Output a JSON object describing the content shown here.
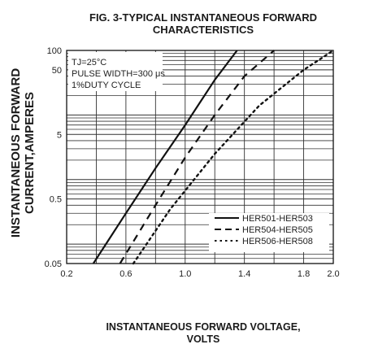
{
  "chart_data": {
    "type": "line",
    "title": "FIG. 3-TYPICAL INSTANTANEOUS FORWARD CHARACTERISTICS",
    "title_lines": [
      "FIG. 3-TYPICAL INSTANTANEOUS FORWARD",
      "CHARACTERISTICS"
    ],
    "xlabel": "INSTANTANEOUS FORWARD VOLTAGE, VOLTS",
    "xlabel_lines": [
      "INSTANTANEOUS FORWARD VOLTAGE,",
      "VOLTS"
    ],
    "ylabel": "INSTANTANEOUS FORWARD CURRENT,AMPERES",
    "ylabel_lines": [
      "INSTANTANEOUS FORWARD",
      "CURRENT,AMPERES"
    ],
    "xlim": [
      0.2,
      2.0
    ],
    "ylim": [
      0.05,
      100
    ],
    "y_scale": "log",
    "grid": true,
    "x_ticks": [
      {
        "v": 0.2,
        "label": "0.2"
      },
      {
        "v": 0.6,
        "label": "0.6"
      },
      {
        "v": 1.0,
        "label": "1.0"
      },
      {
        "v": 1.4,
        "label": "1.4"
      },
      {
        "v": 1.8,
        "label": "1.8"
      },
      {
        "v": 2.0,
        "label": "2.0"
      }
    ],
    "y_ticks": [
      {
        "v": 0.05,
        "label": "0.05"
      },
      {
        "v": 0.5,
        "label": "0.5"
      },
      {
        "v": 5,
        "label": "5"
      },
      {
        "v": 50,
        "label": "50"
      },
      {
        "v": 100,
        "label": "100"
      }
    ],
    "annotations": [
      "TJ=25°C",
      "PULSE WIDTH=300 μs",
      "1%DUTY CYCLE"
    ],
    "legend_position": "bottom-right",
    "series": [
      {
        "name": "HER501-HER503",
        "style": "solid",
        "x": [
          0.38,
          0.6,
          0.8,
          1.0,
          1.2,
          1.35
        ],
        "y": [
          0.05,
          0.3,
          1.5,
          7,
          35,
          100
        ]
      },
      {
        "name": "HER504-HER505",
        "style": "dashed",
        "x": [
          0.56,
          0.8,
          1.0,
          1.2,
          1.4,
          1.6
        ],
        "y": [
          0.05,
          0.4,
          2.2,
          10,
          40,
          100
        ]
      },
      {
        "name": "HER506-HER508",
        "style": "dotted",
        "x": [
          0.65,
          0.9,
          1.2,
          1.5,
          1.8,
          2.0
        ],
        "y": [
          0.05,
          0.35,
          2.5,
          14,
          50,
          100
        ]
      }
    ]
  }
}
